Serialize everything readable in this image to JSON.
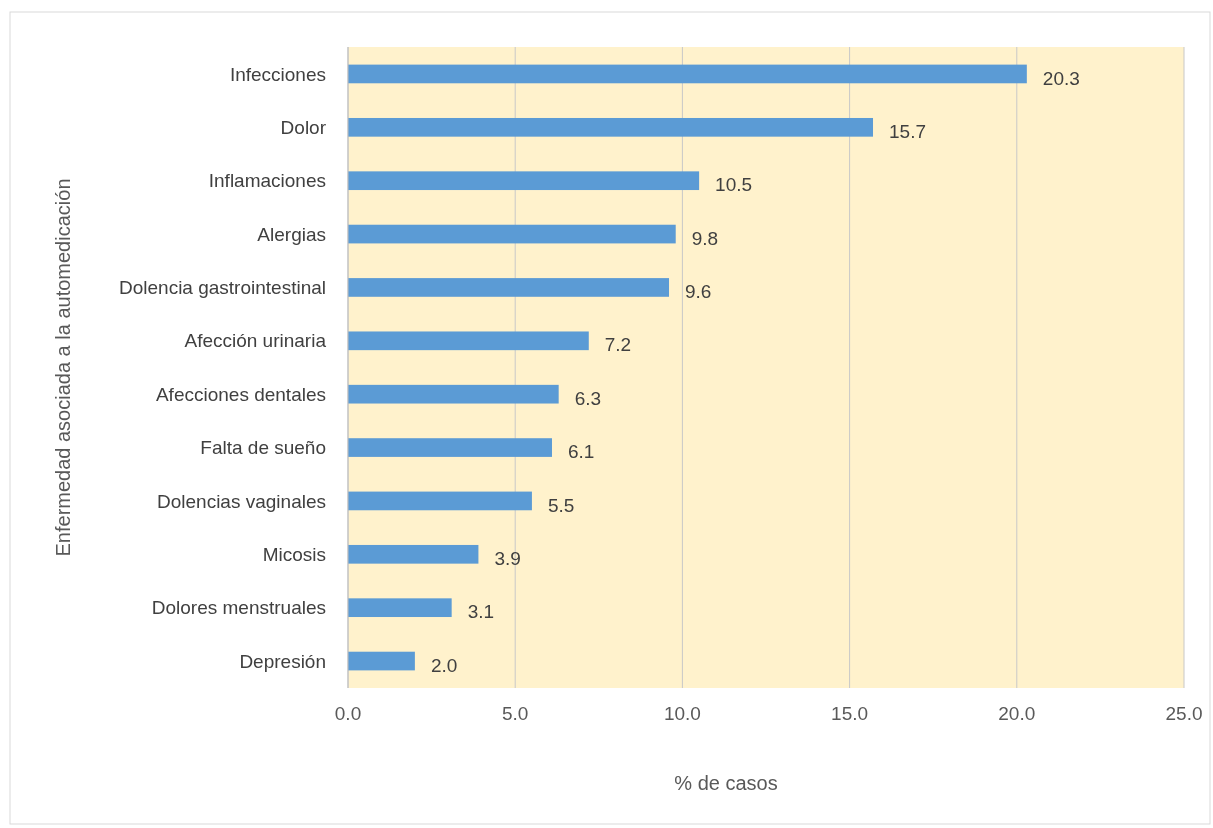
{
  "chart_data": {
    "type": "bar",
    "orientation": "horizontal",
    "xlabel": "% de casos",
    "ylabel": "Enfermedad asociada a la automedicación",
    "categories": [
      "Infecciones",
      "Dolor",
      "Inflamaciones",
      "Alergias",
      "Dolencia gastrointestinal",
      "Afección urinaria",
      "Afecciones dentales",
      "Falta de sueño",
      "Dolencias vaginales",
      "Micosis",
      "Dolores menstruales",
      "Depresión"
    ],
    "values": [
      20.3,
      15.7,
      10.5,
      9.8,
      9.6,
      7.2,
      6.3,
      6.1,
      5.5,
      3.9,
      3.1,
      2.0
    ],
    "value_labels": [
      "20.3",
      "15.7",
      "10.5",
      "9.8",
      "9.6",
      "7.2",
      "6.3",
      "6.1",
      "5.5",
      "3.9",
      "3.1",
      "2.0"
    ],
    "color": "#5b9bd5",
    "xlim": [
      0,
      25
    ],
    "xticks": [
      {
        "value": 0,
        "label": "0.0"
      },
      {
        "value": 5,
        "label": "5.0"
      },
      {
        "value": 10,
        "label": "10.0"
      },
      {
        "value": 15,
        "label": "15.0"
      },
      {
        "value": 20,
        "label": "20.0"
      },
      {
        "value": 25,
        "label": "25.0"
      }
    ],
    "grid": "x"
  }
}
